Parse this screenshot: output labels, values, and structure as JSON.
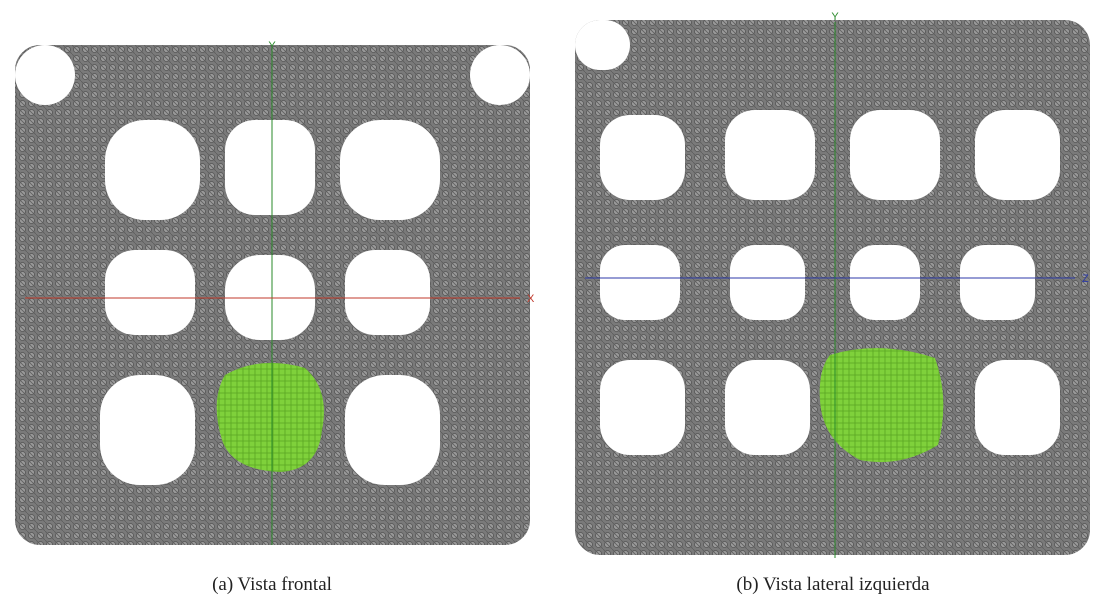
{
  "panels": [
    {
      "vertical_axis": "Y",
      "horizontal_axis": "X",
      "caption": "(a) Vista frontal"
    },
    {
      "vertical_axis": "Y",
      "horizontal_axis": "Z",
      "caption": "(b) Vista lateral izquierda"
    }
  ]
}
